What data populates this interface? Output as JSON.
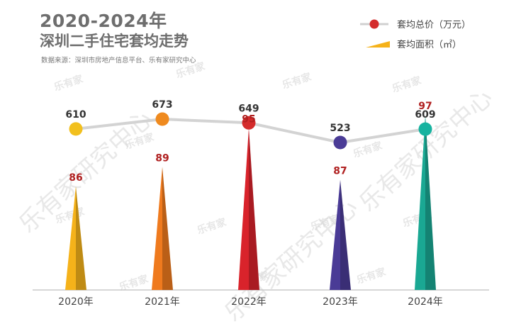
{
  "header": {
    "title_line1": "2020-2024年",
    "title_line2": "深圳二手住宅套均走势",
    "source": "数据来源：深圳市房地产信息平台、乐有家研究中心"
  },
  "watermark": {
    "logo_text": "乐有家",
    "diagonal_text": "乐有家研究中心"
  },
  "chart_data": {
    "type": "line",
    "categories": [
      "2020年",
      "2021年",
      "2022年",
      "2023年",
      "2024年"
    ],
    "series": [
      {
        "name": "套均总价（万元）",
        "type": "line",
        "values": [
          610,
          673,
          649,
          523,
          609
        ],
        "marker_colors": [
          "#f2c01e",
          "#ef8a1f",
          "#d42b2b",
          "#4a3b96",
          "#17b3a0"
        ]
      },
      {
        "name": "套均面积（㎡）",
        "type": "cone",
        "values": [
          86,
          89,
          95,
          87,
          97
        ],
        "colors": [
          "#f5b21a",
          "#ef7a1e",
          "#d9232b",
          "#4a3b96",
          "#1aa893"
        ]
      }
    ],
    "legend_position": "top-right",
    "line_color": "#d3d3d3",
    "grid": false
  }
}
